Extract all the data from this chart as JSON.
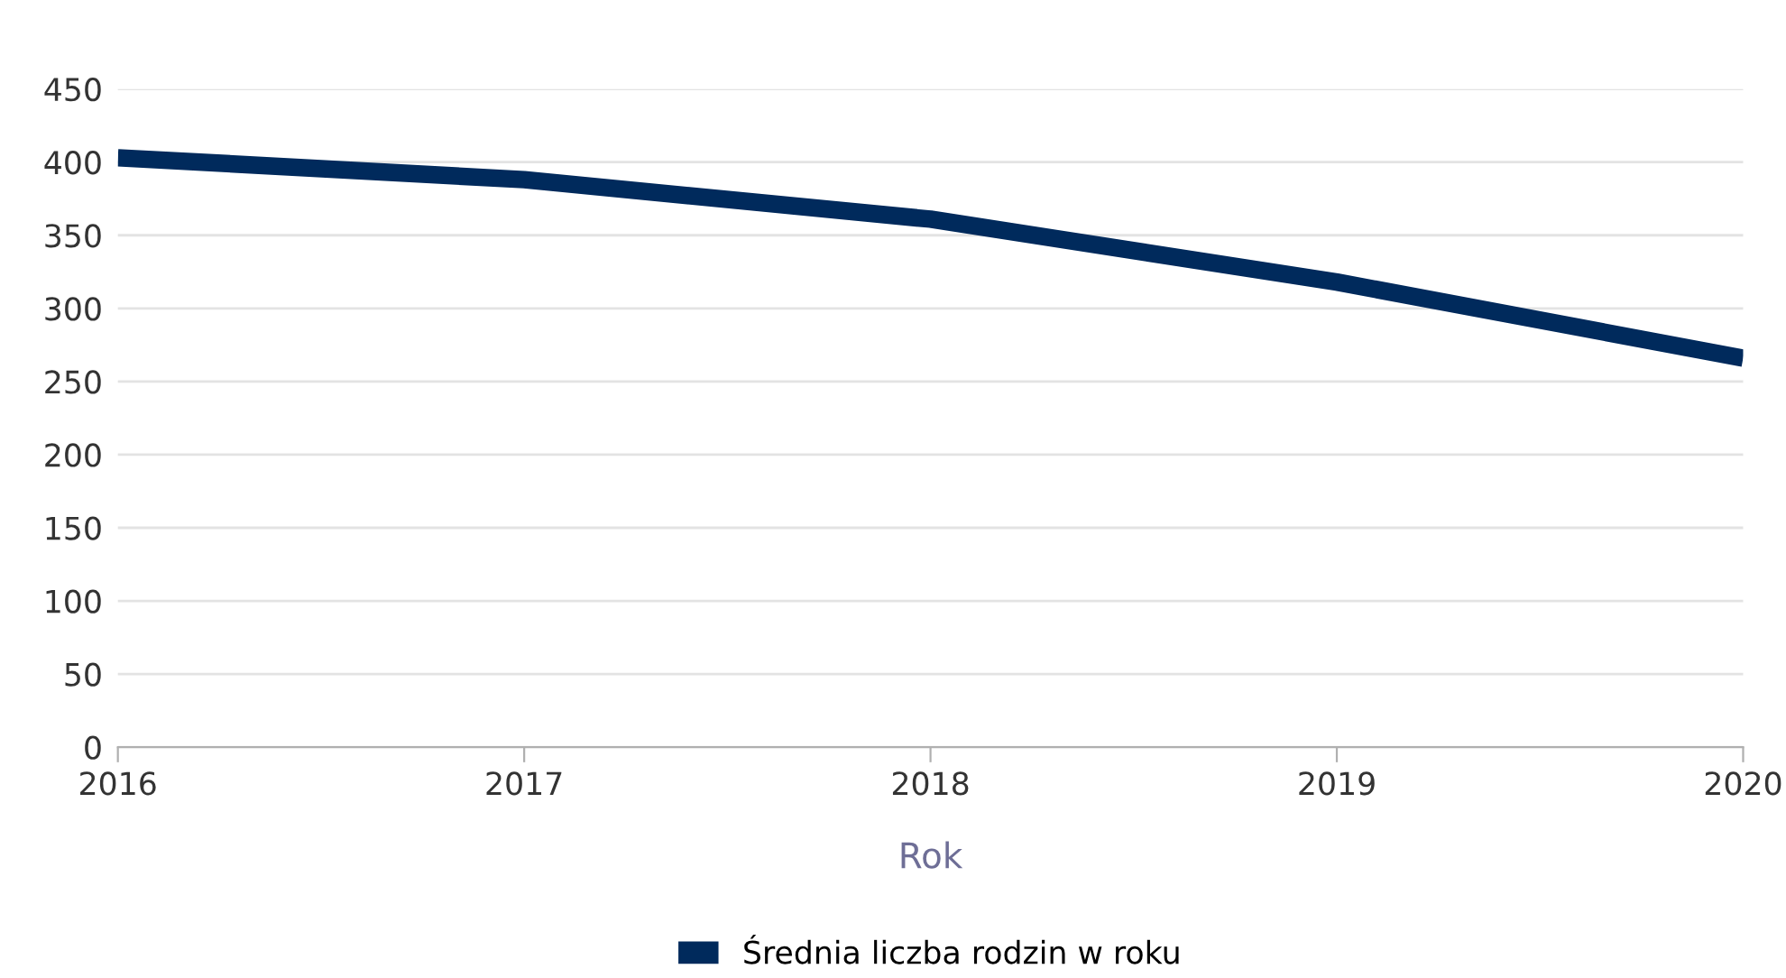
{
  "chart_data": {
    "type": "line",
    "xlabel": "Rok",
    "x": [
      2016,
      2017,
      2018,
      2019,
      2020
    ],
    "series": [
      {
        "name": "Średnia liczba rodzin w roku",
        "color": "#002a5c",
        "values": [
          403,
          388,
          361,
          318,
          266
        ]
      }
    ],
    "xlim": [
      2016,
      2020
    ],
    "xticks": [
      2016,
      2017,
      2018,
      2019,
      2020
    ],
    "ylim": [
      0,
      450
    ],
    "yticks": [
      0,
      50,
      100,
      150,
      200,
      250,
      300,
      350,
      400,
      450
    ],
    "grid": "y",
    "legend": "bottom",
    "marker": "none",
    "line_style": "solid"
  }
}
